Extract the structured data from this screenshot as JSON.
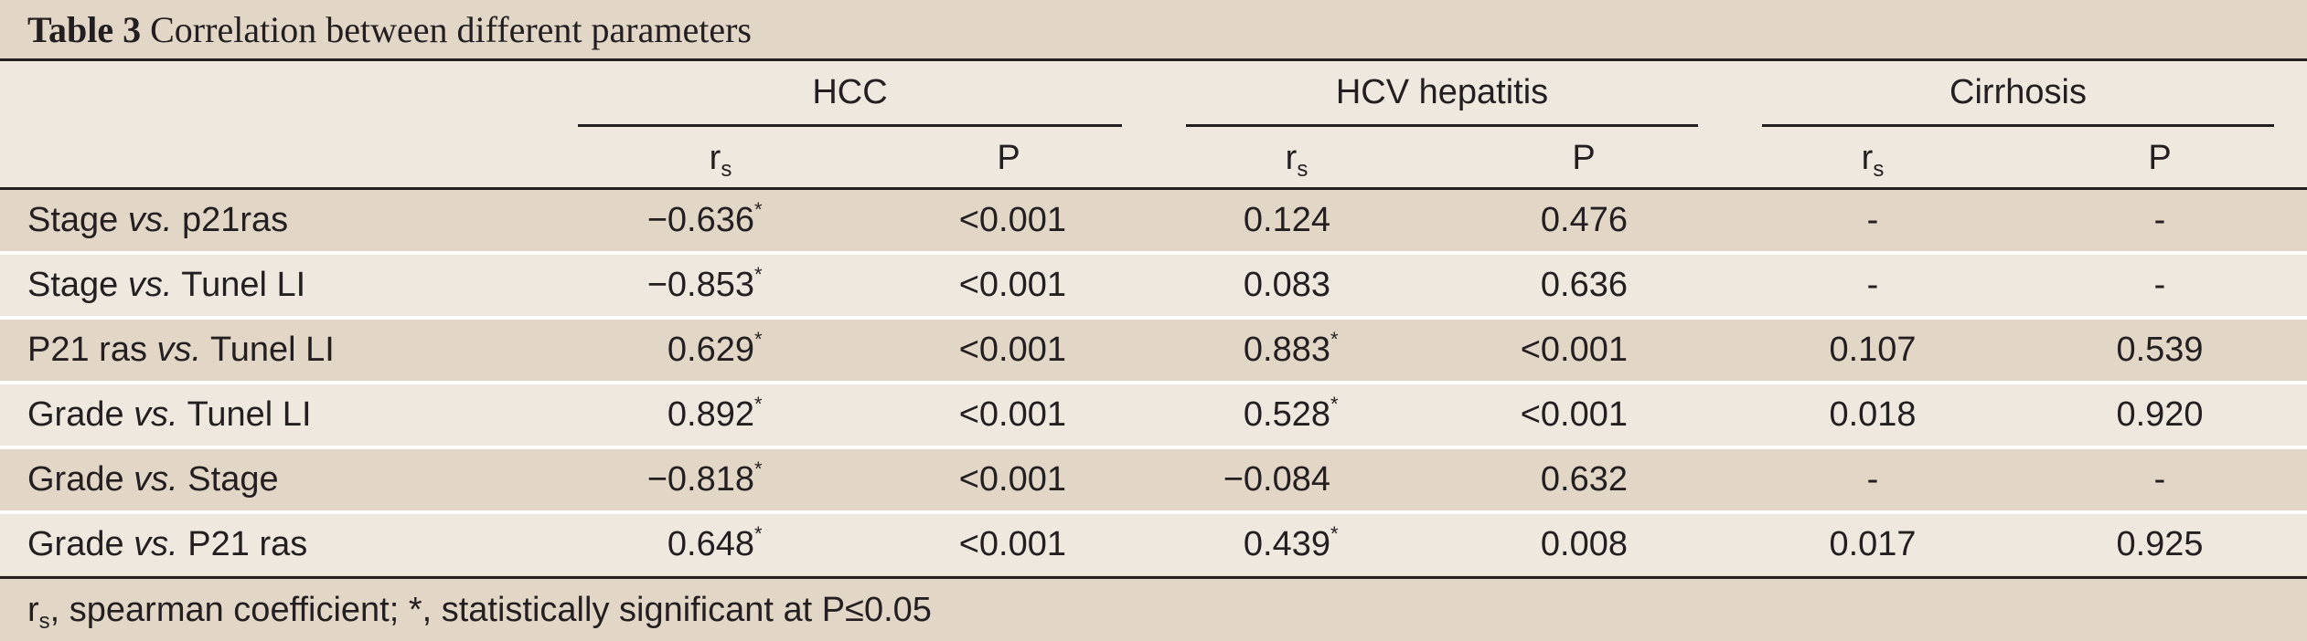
{
  "title": {
    "label": "Table 3",
    "text": "Correlation between different parameters"
  },
  "groups": [
    {
      "name": "HCC"
    },
    {
      "name": "HCV hepatitis"
    },
    {
      "name": "Cirrhosis"
    }
  ],
  "subheaders": {
    "rs_main": "r",
    "rs_sub": "s",
    "p": "P"
  },
  "rows": [
    {
      "label_a": "Stage ",
      "vs": "vs.",
      "label_b": " p21ras",
      "hcc_rs": "−0.636",
      "hcc_rs_star": "*",
      "hcc_p": "<0.001",
      "hcv_rs": "0.124",
      "hcv_rs_star": "",
      "hcv_p": "0.476",
      "cir_rs": "-",
      "cir_p": "-"
    },
    {
      "label_a": "Stage ",
      "vs": "vs.",
      "label_b": " Tunel LI",
      "hcc_rs": "−0.853",
      "hcc_rs_star": "*",
      "hcc_p": "<0.001",
      "hcv_rs": "0.083",
      "hcv_rs_star": "",
      "hcv_p": "0.636",
      "cir_rs": "-",
      "cir_p": "-"
    },
    {
      "label_a": "P21 ras ",
      "vs": "vs.",
      "label_b": " Tunel LI",
      "hcc_rs": "0.629",
      "hcc_rs_star": "*",
      "hcc_p": "<0.001",
      "hcv_rs": "0.883",
      "hcv_rs_star": "*",
      "hcv_p": "<0.001",
      "cir_rs": "0.107",
      "cir_p": "0.539"
    },
    {
      "label_a": "Grade ",
      "vs": "vs.",
      "label_b": " Tunel LI",
      "hcc_rs": "0.892",
      "hcc_rs_star": "*",
      "hcc_p": "<0.001",
      "hcv_rs": "0.528",
      "hcv_rs_star": "*",
      "hcv_p": "<0.001",
      "cir_rs": "0.018",
      "cir_p": "0.920"
    },
    {
      "label_a": "Grade ",
      "vs": "vs.",
      "label_b": " Stage",
      "hcc_rs": "−0.818",
      "hcc_rs_star": "*",
      "hcc_p": "<0.001",
      "hcv_rs": "−0.084",
      "hcv_rs_star": "",
      "hcv_p": "0.632",
      "cir_rs": "-",
      "cir_p": "-"
    },
    {
      "label_a": "Grade ",
      "vs": "vs.",
      "label_b": " P21 ras",
      "hcc_rs": "0.648",
      "hcc_rs_star": "*",
      "hcc_p": "<0.001",
      "hcv_rs": "0.439",
      "hcv_rs_star": "*",
      "hcv_p": "0.008",
      "cir_rs": "0.017",
      "cir_p": "0.925"
    }
  ],
  "footnote": {
    "r": "r",
    "s": "s",
    "text": ", spearman coefficient; *, statistically significant at P≤0.05"
  }
}
